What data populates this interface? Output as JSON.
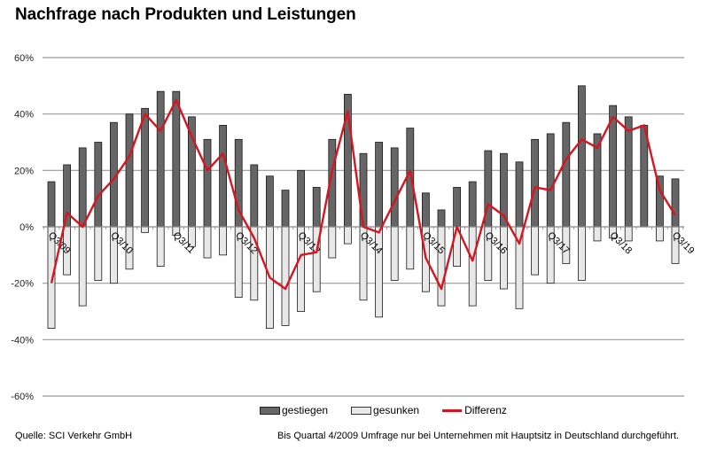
{
  "title": "Nachfrage nach Produkten und Leistungen",
  "footer": {
    "source": "Quelle: SCI Verkehr GmbH",
    "note": "Bis Quartal 4/2009 Umfrage nur bei Unternehmen mit Hauptsitz in Deutschland durchgeführt."
  },
  "colors": {
    "positive": "#666666",
    "negative": "#e8e8e8",
    "line": "#d7141f",
    "grid": "#9a9a9a"
  },
  "chart_data": {
    "type": "bar",
    "title": "Nachfrage nach Produkten und Leistungen",
    "xlabel": "",
    "ylabel": "",
    "ylim": [
      -60,
      60
    ],
    "yticks": [
      60,
      40,
      20,
      0,
      -20,
      -40,
      -60
    ],
    "ytick_labels": [
      "60%",
      "40%",
      "20%",
      "0%",
      "-20%",
      "-40%",
      "-60%"
    ],
    "grid": true,
    "legend_position": "bottom-center",
    "categories": [
      "Q3/09",
      "Q4/09",
      "Q1/10",
      "Q2/10",
      "Q3/10",
      "Q4/10",
      "Q1/11",
      "Q2/11",
      "Q3/11",
      "Q4/11",
      "Q1/12",
      "Q2/12",
      "Q3/12",
      "Q4/12",
      "Q1/13",
      "Q2/13",
      "Q3/13",
      "Q4/13",
      "Q1/14",
      "Q2/14",
      "Q3/14",
      "Q4/14",
      "Q1/15",
      "Q2/15",
      "Q3/15",
      "Q4/15",
      "Q1/16",
      "Q2/16",
      "Q3/16",
      "Q4/16",
      "Q1/17",
      "Q2/17",
      "Q3/17",
      "Q4/17",
      "Q1/18",
      "Q2/18",
      "Q3/18",
      "Q4/18",
      "Q1/19",
      "Q2/19",
      "Q3/19"
    ],
    "xtick_labels": [
      {
        "index": 0,
        "label": "Q3/09"
      },
      {
        "index": 4,
        "label": "Q3/10"
      },
      {
        "index": 8,
        "label": "Q3/11"
      },
      {
        "index": 12,
        "label": "Q3/12"
      },
      {
        "index": 16,
        "label": "Q3/13"
      },
      {
        "index": 20,
        "label": "Q3/14"
      },
      {
        "index": 24,
        "label": "Q3/15"
      },
      {
        "index": 28,
        "label": "Q3/16"
      },
      {
        "index": 32,
        "label": "Q3/17"
      },
      {
        "index": 36,
        "label": "Q3/18"
      },
      {
        "index": 40,
        "label": "Q3/19"
      }
    ],
    "series": [
      {
        "name": "gestiegen",
        "kind": "bar",
        "values": [
          16,
          22,
          28,
          30,
          37,
          40,
          42,
          48,
          48,
          39,
          31,
          36,
          31,
          22,
          18,
          13,
          20,
          14,
          31,
          47,
          26,
          30,
          28,
          35,
          12,
          6,
          14,
          16,
          27,
          26,
          23,
          31,
          33,
          37,
          50,
          33,
          43,
          39,
          36,
          18,
          17
        ]
      },
      {
        "name": "gesunken",
        "kind": "bar",
        "values": [
          -36,
          -17,
          -28,
          -19,
          -20,
          -15,
          -2,
          -14,
          -3,
          -7,
          -11,
          -10,
          -25,
          -26,
          -36,
          -35,
          -30,
          -23,
          -11,
          -6,
          -26,
          -32,
          -19,
          -15,
          -23,
          -28,
          -14,
          -28,
          -19,
          -22,
          -29,
          -17,
          -20,
          -13,
          -19,
          -5,
          -4,
          -5,
          0,
          -5,
          -13
        ]
      },
      {
        "name": "Differenz",
        "kind": "line",
        "values": [
          -20,
          5,
          0,
          11,
          17,
          25,
          40,
          34,
          45,
          32,
          20,
          26,
          6,
          -4,
          -18,
          -22,
          -10,
          -9,
          20,
          41,
          0,
          -2,
          9,
          20,
          -11,
          -22,
          0,
          -12,
          8,
          4,
          -6,
          14,
          13,
          24,
          31,
          28,
          39,
          34,
          36,
          13,
          4
        ]
      }
    ]
  }
}
